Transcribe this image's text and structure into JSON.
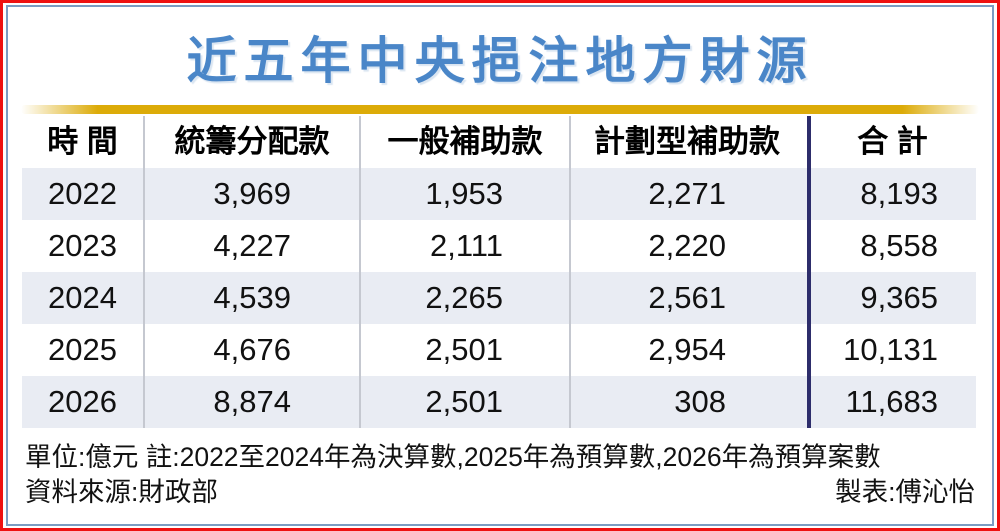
{
  "title": "近五年中央挹注地方財源",
  "table": {
    "headers": [
      "時 間",
      "統籌分配款",
      "一般補助款",
      "計劃型補助款",
      "合 計"
    ],
    "rows": [
      {
        "year": "2022",
        "values": [
          "3,969",
          "1,953",
          "2,271",
          "8,193"
        ]
      },
      {
        "year": "2023",
        "values": [
          "4,227",
          "2,111",
          "2,220",
          "8,558"
        ]
      },
      {
        "year": "2024",
        "values": [
          "4,539",
          "2,265",
          "2,561",
          "9,365"
        ]
      },
      {
        "year": "2025",
        "values": [
          "4,676",
          "2,501",
          "2,954",
          "10,131"
        ]
      },
      {
        "year": "2026",
        "values": [
          "8,874",
          "2,501",
          "308",
          "11,683"
        ]
      }
    ]
  },
  "footer": {
    "unit_note": "單位:億元  註:2022至2024年為決算數,2025年為預算數,2026年為預算案數",
    "source": "資料來源:財政部",
    "credit": "製表:傅沁怡"
  },
  "colors": {
    "title_blue": "#4a86c8",
    "outer_border_red": "#ee1111",
    "inner_border_blue": "#7b9cc2",
    "gold_band": "#dcab08",
    "shaded_row": "#e9ecf3",
    "column_separator_gray": "#c5c8d0",
    "total_divider_navy": "#2d2d6b"
  },
  "chart_data": {
    "type": "table",
    "title": "近五年中央挹注地方財源",
    "unit": "億元",
    "categories": [
      "2022",
      "2023",
      "2024",
      "2025",
      "2026"
    ],
    "series": [
      {
        "name": "統籌分配款",
        "values": [
          3969,
          4227,
          4539,
          4676,
          8874
        ]
      },
      {
        "name": "一般補助款",
        "values": [
          1953,
          2111,
          2265,
          2501,
          2501
        ]
      },
      {
        "name": "計劃型補助款",
        "values": [
          2271,
          2220,
          2561,
          2954,
          308
        ]
      },
      {
        "name": "合計",
        "values": [
          8193,
          8558,
          9365,
          10131,
          11683
        ]
      }
    ],
    "notes": "2022至2024年為決算數,2025年為預算數,2026年為預算案數;資料來源:財政部;製表:傅沁怡"
  }
}
